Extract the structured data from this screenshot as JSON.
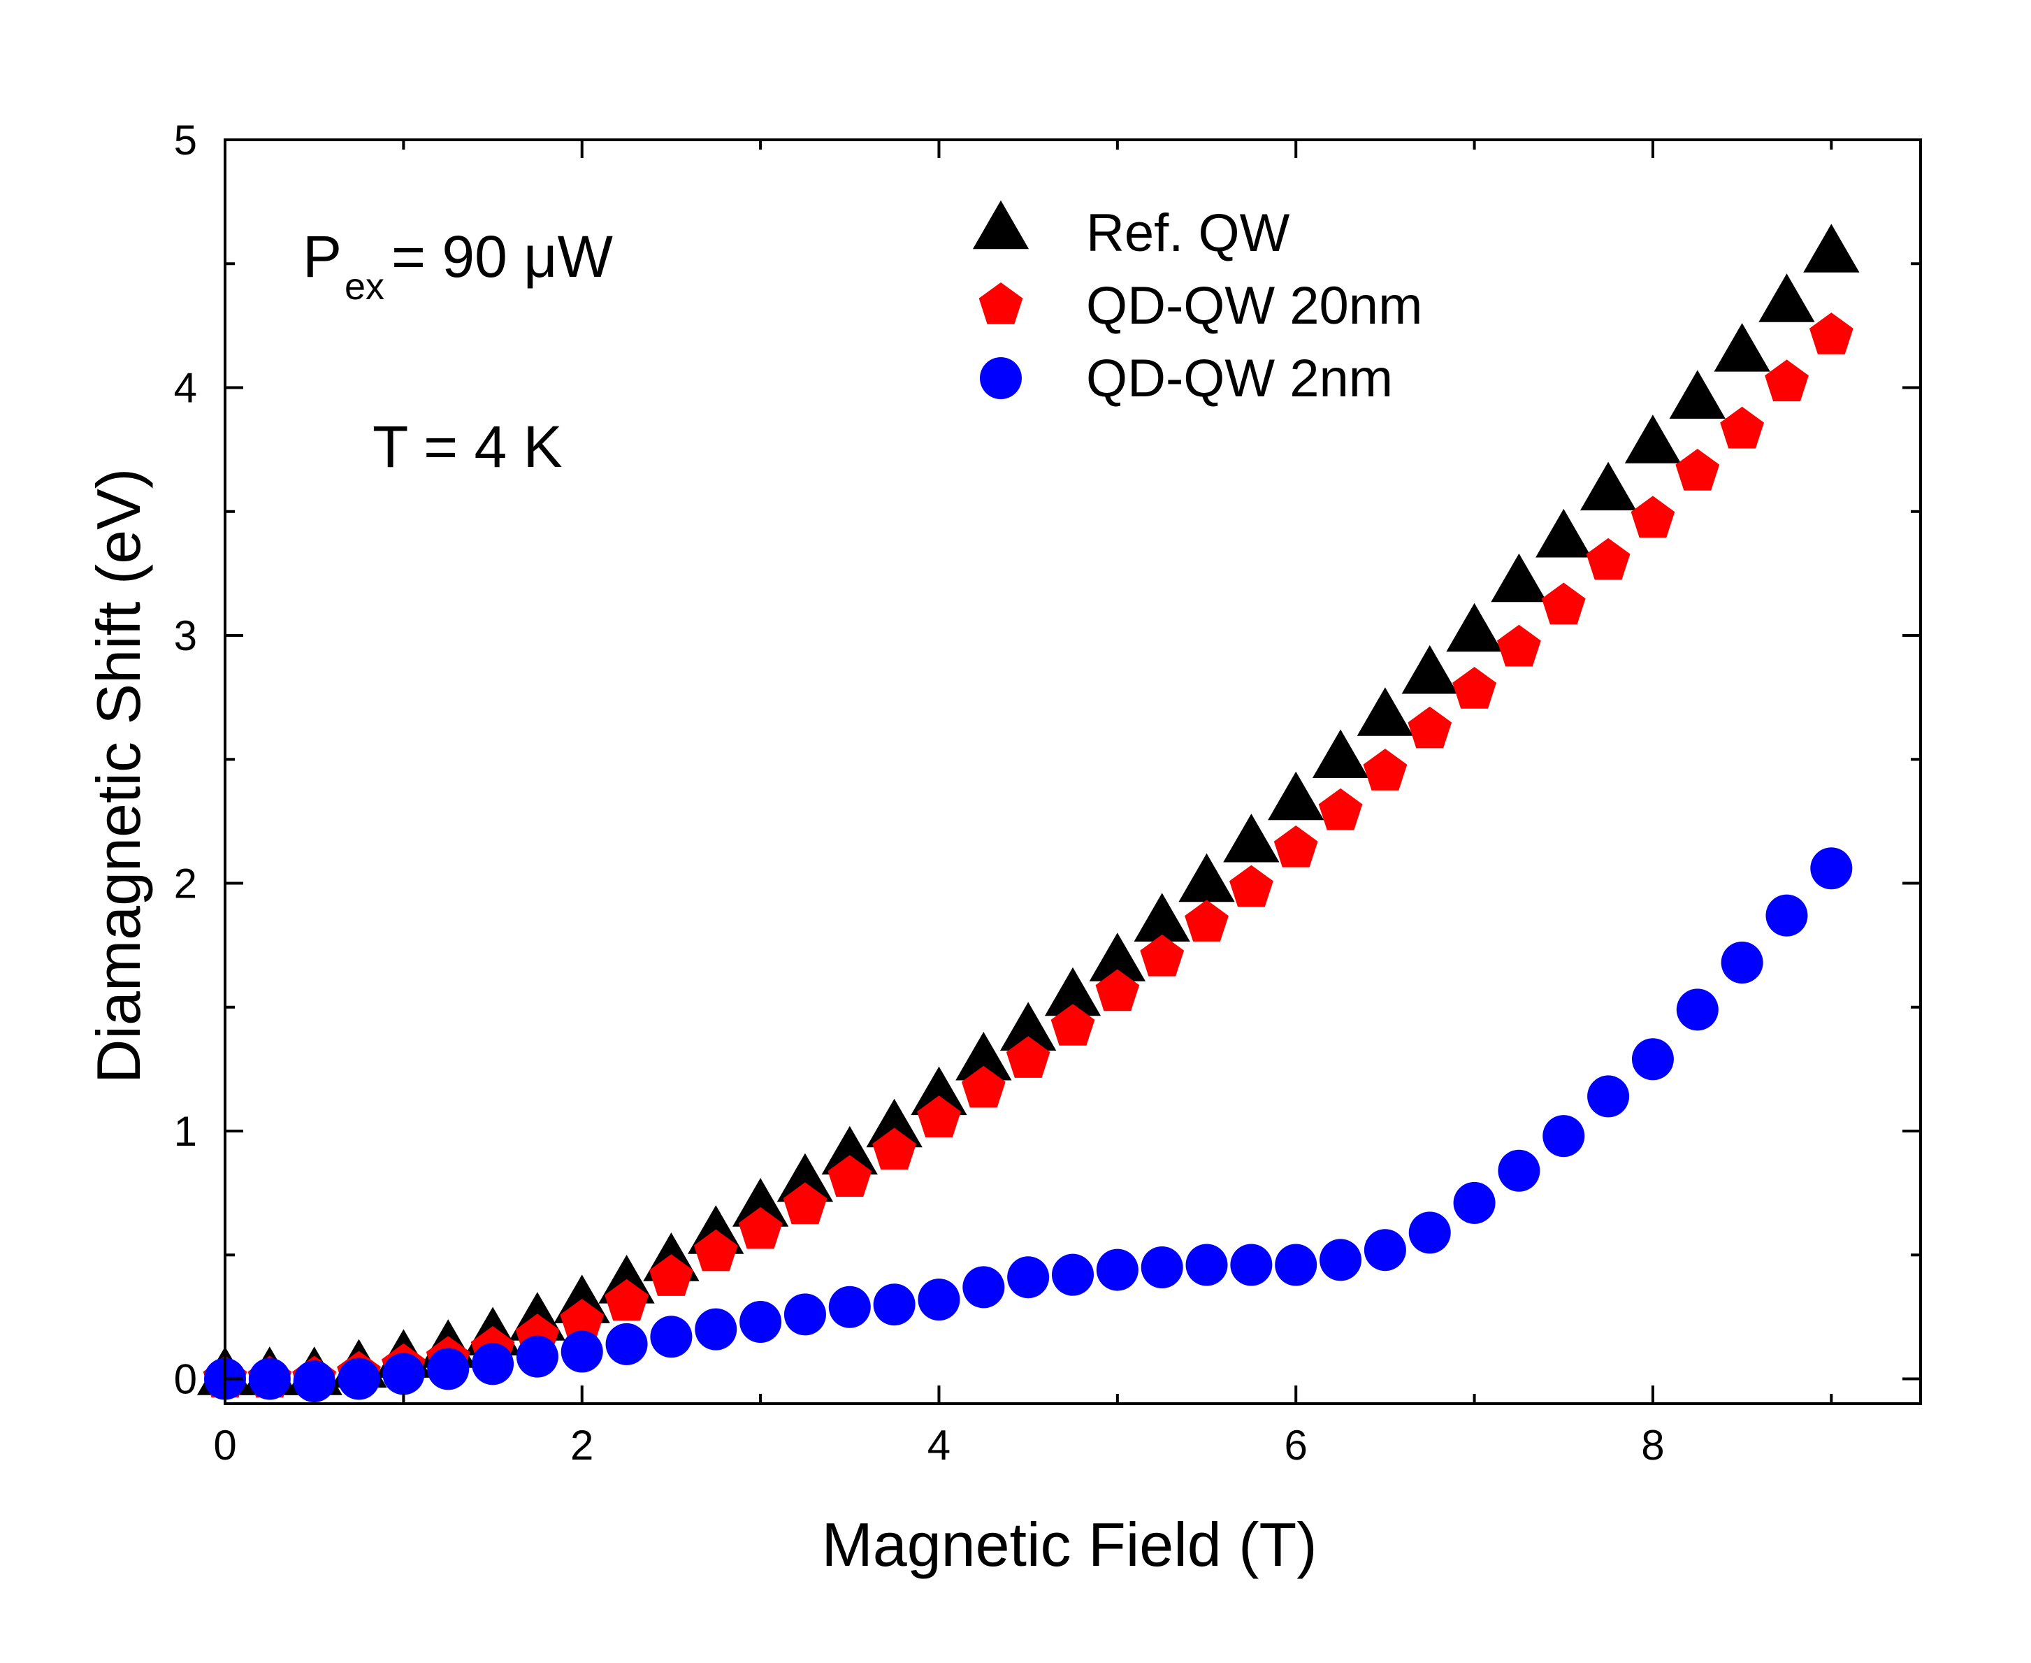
{
  "chart_data": {
    "type": "scatter",
    "xlabel": "Magnetic Field (T)",
    "ylabel": "Diamagnetic Shift (eV)",
    "xlim": [
      0,
      9.5
    ],
    "ylim": [
      -0.1,
      5
    ],
    "x_ticks": [
      0,
      2,
      4,
      6,
      8
    ],
    "y_ticks": [
      0,
      1,
      2,
      3,
      4,
      5
    ],
    "grid": false,
    "legend_position": "top-right",
    "annotations": {
      "power_main": "P",
      "power_sub": "ex",
      "power_rest": " = 90 μW",
      "temperature": "T = 4 K"
    },
    "x": [
      0,
      0.25,
      0.5,
      0.75,
      1.0,
      1.25,
      1.5,
      1.75,
      2.0,
      2.25,
      2.5,
      2.75,
      3.0,
      3.25,
      3.5,
      3.75,
      4.0,
      4.25,
      4.5,
      4.75,
      5.0,
      5.25,
      5.5,
      5.75,
      6.0,
      6.25,
      6.5,
      6.75,
      7.0,
      7.25,
      7.5,
      7.75,
      8.0,
      8.25,
      8.5,
      8.75,
      9.0
    ],
    "series": [
      {
        "name": "Ref. QW",
        "marker": "triangle",
        "color": "#000000",
        "values": [
          0.0,
          0.0,
          0.0,
          0.03,
          0.07,
          0.11,
          0.16,
          0.22,
          0.29,
          0.37,
          0.46,
          0.57,
          0.68,
          0.78,
          0.89,
          1.0,
          1.13,
          1.27,
          1.39,
          1.53,
          1.67,
          1.83,
          1.99,
          2.15,
          2.32,
          2.49,
          2.66,
          2.83,
          3.0,
          3.2,
          3.38,
          3.57,
          3.76,
          3.94,
          4.13,
          4.33,
          4.53
        ]
      },
      {
        "name": "QD-QW 20nm",
        "marker": "pentagon",
        "color": "#ff0000",
        "values": [
          0.0,
          0.0,
          0.0,
          0.02,
          0.05,
          0.08,
          0.12,
          0.17,
          0.23,
          0.31,
          0.41,
          0.51,
          0.6,
          0.7,
          0.81,
          0.92,
          1.05,
          1.17,
          1.29,
          1.42,
          1.56,
          1.7,
          1.84,
          1.98,
          2.14,
          2.29,
          2.45,
          2.62,
          2.78,
          2.95,
          3.12,
          3.3,
          3.47,
          3.66,
          3.83,
          4.02,
          4.21
        ]
      },
      {
        "name": "QD-QW 2nm",
        "marker": "circle",
        "color": "#0000ff",
        "values": [
          0.0,
          0.0,
          -0.01,
          0.0,
          0.02,
          0.04,
          0.06,
          0.09,
          0.11,
          0.14,
          0.17,
          0.2,
          0.23,
          0.26,
          0.29,
          0.3,
          0.32,
          0.37,
          0.41,
          0.42,
          0.44,
          0.45,
          0.46,
          0.46,
          0.46,
          0.48,
          0.52,
          0.59,
          0.71,
          0.84,
          0.98,
          1.14,
          1.29,
          1.49,
          1.68,
          1.87,
          2.06
        ]
      }
    ]
  }
}
